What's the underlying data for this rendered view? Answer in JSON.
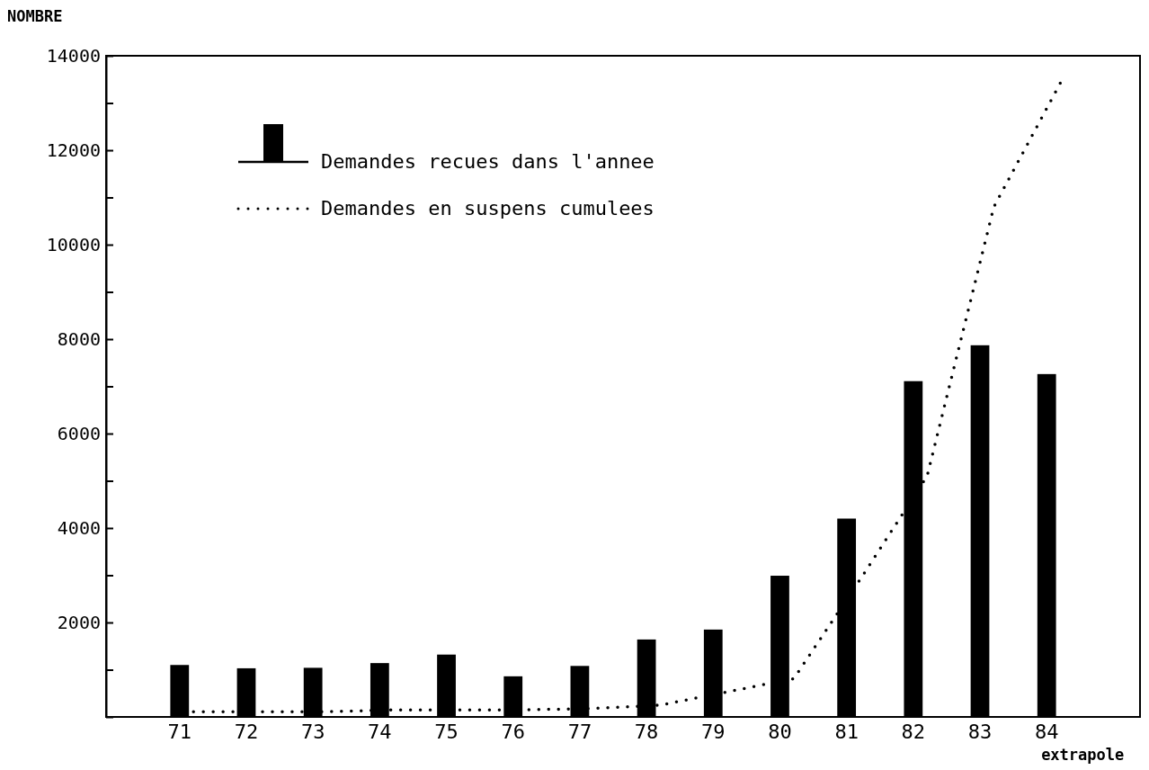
{
  "chart_data": {
    "type": "bar",
    "ylabel": "NOMBRE",
    "categories": [
      "71",
      "72",
      "73",
      "74",
      "75",
      "76",
      "77",
      "78",
      "79",
      "80",
      "81",
      "82",
      "83",
      "84"
    ],
    "series": [
      {
        "name": "Demandes recues dans l'annee",
        "color": "#000000",
        "values": [
          1100,
          1030,
          1040,
          1140,
          1320,
          860,
          1080,
          1640,
          1850,
          2990,
          4200,
          7110,
          7870,
          7260
        ]
      },
      {
        "name": "Demandes en suspens cumulees",
        "type": "line",
        "line_style": "dotted",
        "color": "#000000",
        "values": [
          110,
          110,
          110,
          150,
          150,
          150,
          180,
          250,
          530,
          810,
          2920,
          5100,
          10800,
          13430
        ]
      }
    ],
    "ylim": [
      0,
      14000
    ],
    "yticks": [
      {
        "value": 0,
        "label": null
      },
      {
        "value": 1000,
        "label": null
      },
      2000,
      {
        "value": 3000,
        "label": null
      },
      4000,
      {
        "value": 5000,
        "label": null
      },
      6000,
      {
        "value": 7000,
        "label": null
      },
      8000,
      {
        "value": 9000,
        "label": null
      },
      10000,
      {
        "value": 11000,
        "label": null
      },
      12000,
      {
        "value": 13000,
        "label": null
      },
      14000
    ],
    "legend": "top left",
    "grid": false,
    "annotations": [
      "extrapole"
    ]
  }
}
